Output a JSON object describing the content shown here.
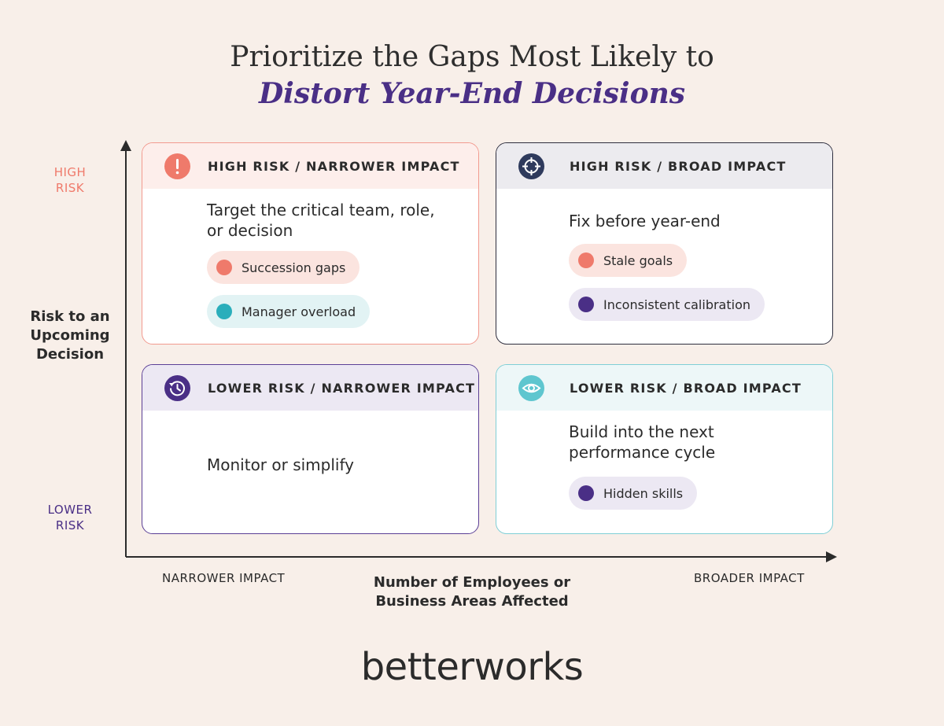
{
  "title": {
    "line1": "Prioritize the Gaps Most Likely to",
    "line2": "Distort Year-End Decisions"
  },
  "y_axis": {
    "high": "HIGH RISK",
    "low": "LOWER RISK",
    "title": "Risk to an Upcoming Decision"
  },
  "x_axis": {
    "left": "NARROWER IMPACT",
    "right": "BROADER IMPACT",
    "title": "Number of Employees or Business Areas Affected"
  },
  "quadrants": {
    "top_left": {
      "heading": "HIGH RISK / NARROWER IMPACT",
      "text": "Target the critical team, role, or decision",
      "icon": "exclamation-icon",
      "items": [
        {
          "label": "Succession gaps",
          "dot_color": "#ef7a6b",
          "bg": "#fbe4df"
        },
        {
          "label": "Manager overload",
          "dot_color": "#2aaebb",
          "bg": "#e2f3f4"
        }
      ]
    },
    "top_right": {
      "heading": "HIGH RISK / BROAD IMPACT",
      "text": "Fix before year-end",
      "icon": "crosshair-icon",
      "items": [
        {
          "label": "Stale goals",
          "dot_color": "#ef7a6b",
          "bg": "#fbe4df"
        },
        {
          "label": "Inconsistent calibration",
          "dot_color": "#4a2f86",
          "bg": "#ece8f3"
        }
      ]
    },
    "bottom_left": {
      "heading": "LOWER RISK / NARROWER IMPACT",
      "text": "Monitor or simplify",
      "icon": "history-icon",
      "items": []
    },
    "bottom_right": {
      "heading": "LOWER RISK / BROAD IMPACT",
      "text": "Build into the next performance cycle",
      "icon": "eye-icon",
      "items": [
        {
          "label": "Hidden skills",
          "dot_color": "#4a2f86",
          "bg": "#ece8f3"
        }
      ]
    }
  },
  "colors": {
    "background": "#f8efe9",
    "accent_purple": "#4a2f86",
    "accent_coral": "#ef7a6b",
    "accent_teal": "#2aaebb",
    "dark_navy": "#2e2e3e"
  },
  "logo": "betterworks"
}
